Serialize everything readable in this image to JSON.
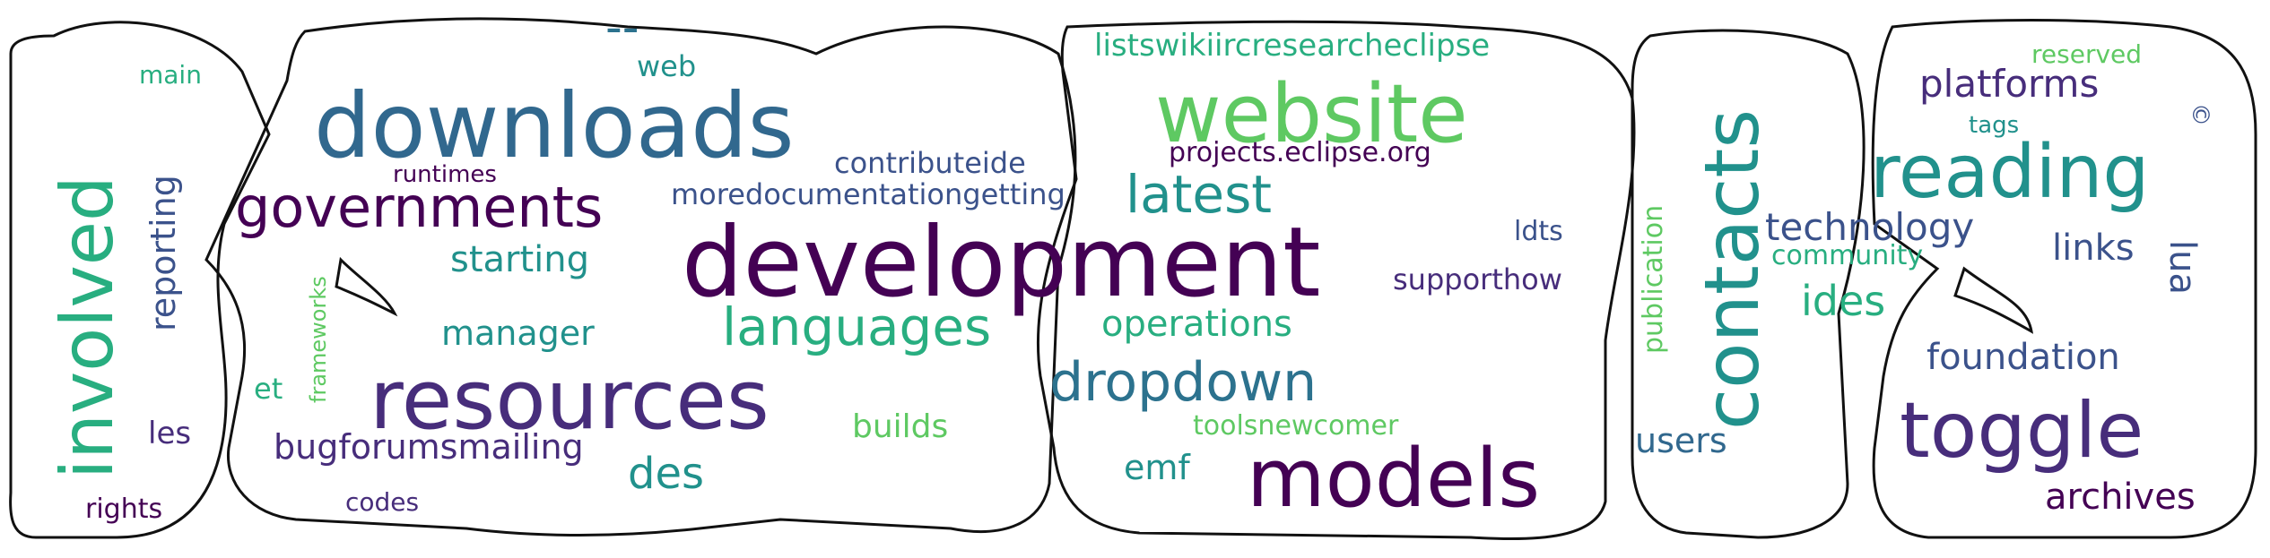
{
  "cloud": {
    "palette": {
      "dark_purple": "#440154",
      "purple": "#472d7b",
      "indigo": "#3b528b",
      "blue": "#2c728e",
      "teal": "#21918c",
      "green_teal": "#28ae80",
      "green": "#5ec962",
      "outline": "#111111"
    },
    "words": [
      {
        "text": "development",
        "color": "#440154"
      },
      {
        "text": "downloads",
        "color": "#31688e"
      },
      {
        "text": "resources",
        "color": "#472d7b"
      },
      {
        "text": "website",
        "color": "#5ec962"
      },
      {
        "text": "models",
        "color": "#440154"
      },
      {
        "text": "contacts",
        "color": "#21918c"
      },
      {
        "text": "reading",
        "color": "#21918c"
      },
      {
        "text": "toggle",
        "color": "#472d7b"
      },
      {
        "text": "involved",
        "color": "#28ae80"
      },
      {
        "text": "governments",
        "color": "#440154"
      },
      {
        "text": "languages",
        "color": "#28ae80"
      },
      {
        "text": "dropdown",
        "color": "#2c728e"
      },
      {
        "text": "latest",
        "color": "#21918c"
      },
      {
        "text": "--",
        "color": "#2c728e"
      },
      {
        "text": "listswikiircresearcheclipse",
        "color": "#28ae80"
      },
      {
        "text": "platforms",
        "color": "#472d7b"
      },
      {
        "text": "technology",
        "color": "#3b528b"
      },
      {
        "text": "ides",
        "color": "#28ae80"
      },
      {
        "text": "links",
        "color": "#3b528b"
      },
      {
        "text": "lua",
        "color": "#3b528b"
      },
      {
        "text": "foundation",
        "color": "#3b528b"
      },
      {
        "text": "archives",
        "color": "#440154"
      },
      {
        "text": "operations",
        "color": "#28ae80"
      },
      {
        "text": "des",
        "color": "#21918c"
      },
      {
        "text": "starting",
        "color": "#21918c"
      },
      {
        "text": "manager",
        "color": "#21918c"
      },
      {
        "text": "bugforumsmailing",
        "color": "#472d7b"
      },
      {
        "text": "contributeide",
        "color": "#3b528b"
      },
      {
        "text": "moredocumentationgetting",
        "color": "#3b528b"
      },
      {
        "text": "projects.eclipse.org",
        "color": "#440154"
      },
      {
        "text": "supporthow",
        "color": "#472d7b"
      },
      {
        "text": "reporting",
        "color": "#3b528b"
      },
      {
        "text": "builds",
        "color": "#5ec962"
      },
      {
        "text": "toolsnewcomer",
        "color": "#5ec962"
      },
      {
        "text": "emf",
        "color": "#21918c"
      },
      {
        "text": "users",
        "color": "#31688e"
      },
      {
        "text": "publication",
        "color": "#5ec962"
      },
      {
        "text": "community",
        "color": "#28ae80"
      },
      {
        "text": "web",
        "color": "#21918c"
      },
      {
        "text": "main",
        "color": "#28ae80"
      },
      {
        "text": "runtimes",
        "color": "#440154"
      },
      {
        "text": "ldts",
        "color": "#3b528b"
      },
      {
        "text": "reserved",
        "color": "#5ec962"
      },
      {
        "text": "tags",
        "color": "#21918c"
      },
      {
        "text": "©",
        "color": "#3b528b"
      },
      {
        "text": "frameworks",
        "color": "#5ec962"
      },
      {
        "text": "et",
        "color": "#28ae80"
      },
      {
        "text": "les",
        "color": "#472d7b"
      },
      {
        "text": "rights",
        "color": "#440154"
      },
      {
        "text": "codes",
        "color": "#472d7b"
      }
    ]
  }
}
